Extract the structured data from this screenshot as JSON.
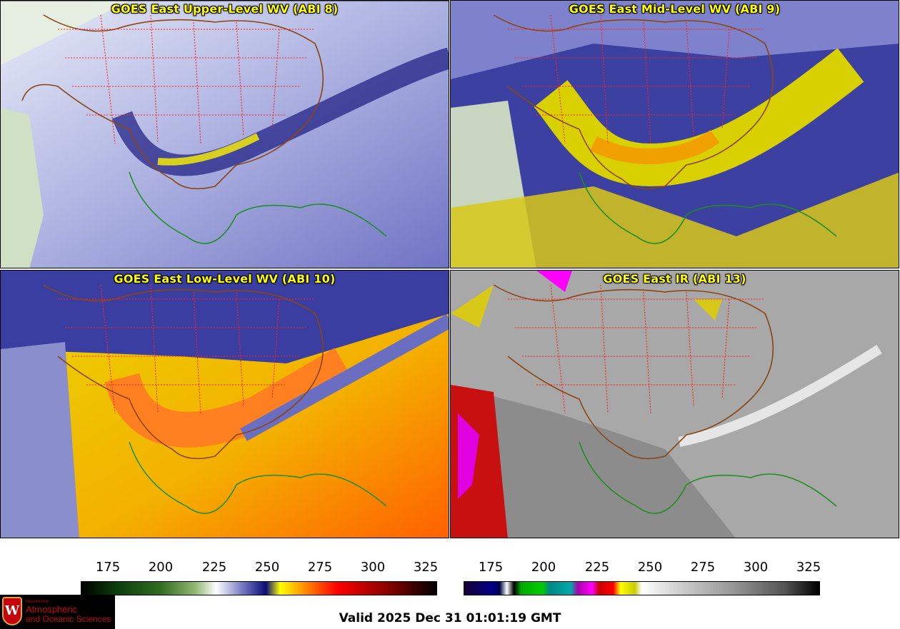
{
  "panels": [
    {
      "title": "GOES East Upper-Level WV (ABI 8)",
      "palette": "wv_upper"
    },
    {
      "title": "GOES East Mid-Level WV (ABI 9)",
      "palette": "wv_mid"
    },
    {
      "title": "GOES East Low-Level WV (ABI 10)",
      "palette": "wv_low"
    },
    {
      "title": "GOES East IR (ABI 13)",
      "palette": "ir"
    }
  ],
  "colorbar_wv": {
    "ticks": [
      "175",
      "200",
      "225",
      "250",
      "275",
      "300",
      "325"
    ]
  },
  "colorbar_ir": {
    "ticks": [
      "175",
      "200",
      "225",
      "250",
      "275",
      "300",
      "325"
    ]
  },
  "logo": {
    "dept": "Department of",
    "line1": "Atmospheric",
    "line2": "and Oceanic Sciences",
    "mark": "W"
  },
  "valid_time": "Valid 2025 Dec 31 01:01:19 GMT",
  "colors": {
    "title": "#ffff00",
    "state_lines": "#ff2020",
    "coast_us": "#8b4513",
    "coast_other": "#1a8f1a"
  }
}
